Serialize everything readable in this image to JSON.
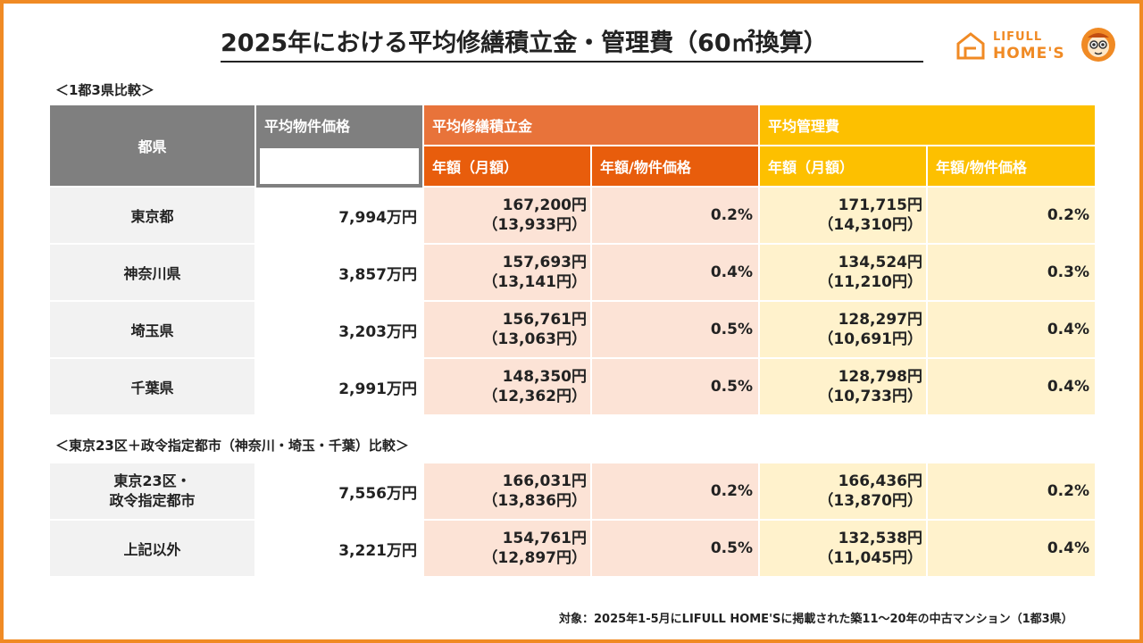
{
  "title": "2025年における平均修繕積立金・管理費（60㎡換算）",
  "logo": {
    "line1": "LIFULL",
    "line2": "HOME'S"
  },
  "section1_label": "＜1都3県比較＞",
  "section2_label": "＜東京23区＋政令指定都市（神奈川・埼玉・千葉）比較＞",
  "headers": {
    "region": "都県",
    "price": "平均物件価格",
    "repair": "平均修繕積立金",
    "mgmt": "平均管理費",
    "annual_monthly": "年額（月額）",
    "ratio": "年額/物件価格"
  },
  "rows": [
    {
      "name": "東京都",
      "price": "7,994万円",
      "repair_annual": "167,200円",
      "repair_monthly": "（13,933円）",
      "repair_ratio": "0.2%",
      "mgmt_annual": "171,715円",
      "mgmt_monthly": "（14,310円）",
      "mgmt_ratio": "0.2%"
    },
    {
      "name": "神奈川県",
      "price": "3,857万円",
      "repair_annual": "157,693円",
      "repair_monthly": "（13,141円）",
      "repair_ratio": "0.4%",
      "mgmt_annual": "134,524円",
      "mgmt_monthly": "（11,210円）",
      "mgmt_ratio": "0.3%"
    },
    {
      "name": "埼玉県",
      "price": "3,203万円",
      "repair_annual": "156,761円",
      "repair_monthly": "（13,063円）",
      "repair_ratio": "0.5%",
      "mgmt_annual": "128,297円",
      "mgmt_monthly": "（10,691円）",
      "mgmt_ratio": "0.4%"
    },
    {
      "name": "千葉県",
      "price": "2,991万円",
      "repair_annual": "148,350円",
      "repair_monthly": "（12,362円）",
      "repair_ratio": "0.5%",
      "mgmt_annual": "128,798円",
      "mgmt_monthly": "（10,733円）",
      "mgmt_ratio": "0.4%"
    }
  ],
  "rows2": [
    {
      "name_line1": "東京23区・",
      "name_line2": "政令指定都市",
      "price": "7,556万円",
      "repair_annual": "166,031円",
      "repair_monthly": "（13,836円）",
      "repair_ratio": "0.2%",
      "mgmt_annual": "166,436円",
      "mgmt_monthly": "（13,870円）",
      "mgmt_ratio": "0.2%"
    },
    {
      "name_line1": "上記以外",
      "name_line2": "",
      "price": "3,221万円",
      "repair_annual": "154,761円",
      "repair_monthly": "（12,897円）",
      "repair_ratio": "0.5%",
      "mgmt_annual": "132,538円",
      "mgmt_monthly": "（11,045円）",
      "mgmt_ratio": "0.4%"
    }
  ],
  "note": "対象：2025年1-5月にLIFULL HOME'Sに掲載された築11～20年の中古マンション（1都3県）",
  "colors": {
    "accent": "#f08a24",
    "repair_header": "#e8733a",
    "repair_sub": "#e85d0c",
    "mgmt_header": "#fdc000",
    "repair_fill": "#fce3d6",
    "mgmt_fill": "#fff2cc",
    "gray": "#7f7f7f"
  }
}
